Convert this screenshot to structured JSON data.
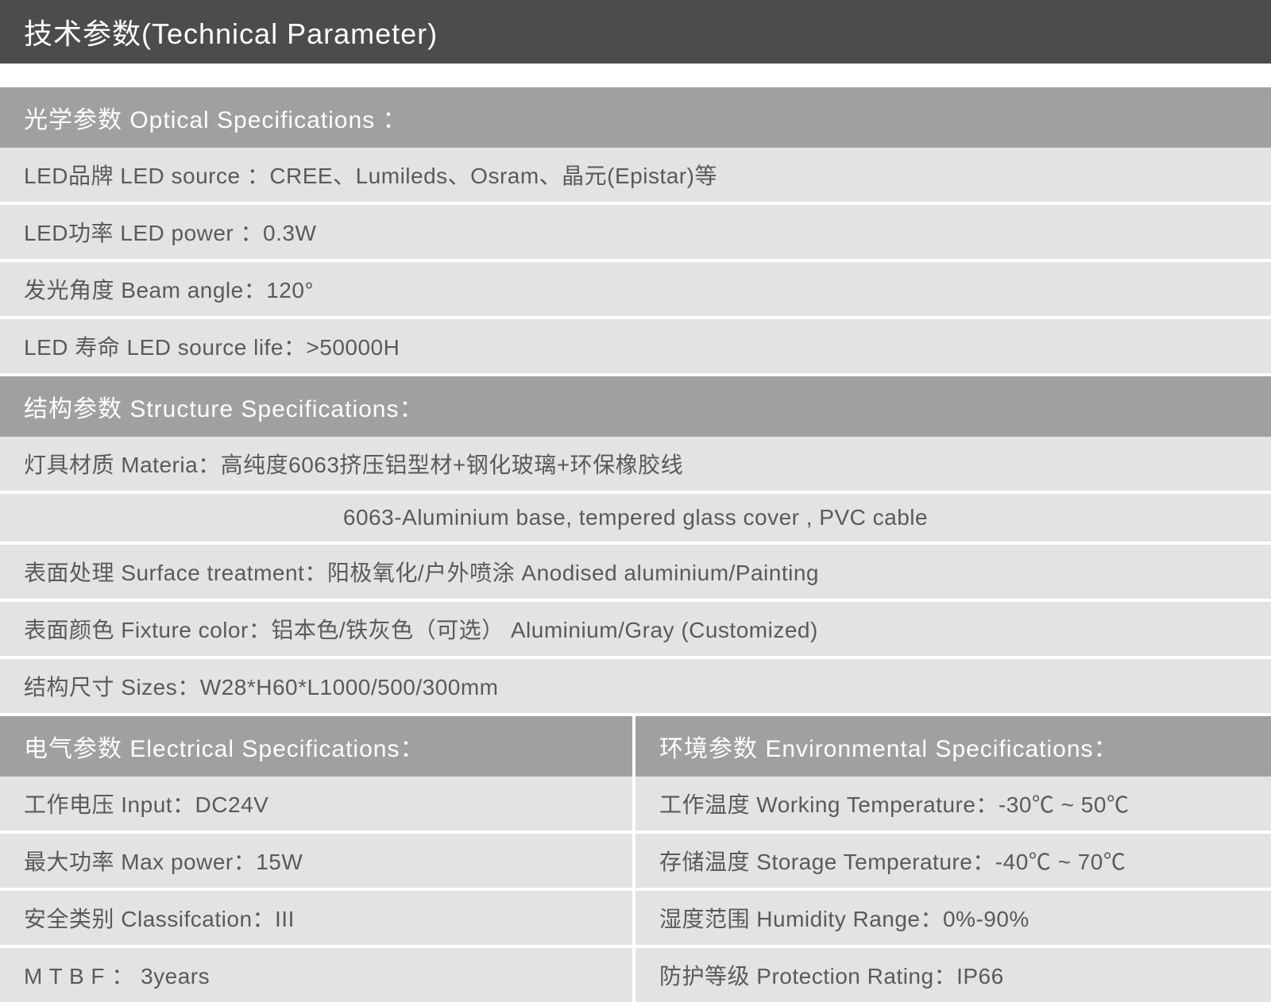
{
  "colors": {
    "title_bg": "#4b4c4d",
    "header_bg": "#9fa0a1",
    "row_bg": "#e3e3e3",
    "divider": "#ffffff",
    "title_text": "#ffffff",
    "row_text": "#595a5b"
  },
  "typography": {
    "title_fontsize": 36,
    "header_fontsize": 30,
    "row_fontsize": 28,
    "font_family": "Microsoft YaHei, Arial, sans-serif"
  },
  "title": "技术参数(Technical Parameter)",
  "sections": {
    "optical": {
      "header": "光学参数 Optical Specifications ：",
      "rows": [
        "LED品牌 LED source ：CREE、Lumileds、Osram、晶元(Epistar)等",
        "LED功率 LED power ：0.3W",
        "发光角度 Beam angle：120°",
        "LED 寿命 LED source life：>50000H"
      ]
    },
    "structure": {
      "header": "结构参数 Structure Specifications：",
      "rows": [
        "灯具材质 Materia：高纯度6063挤压铝型材+钢化玻璃+环保橡胶线",
        "6063-Aluminium base, tempered glass cover , PVC cable",
        "表面处理 Surface treatment：阳极氧化/户外喷涂 Anodised aluminium/Painting",
        "表面颜色 Fixture color：铝本色/铁灰色（可选） Aluminium/Gray (Customized)",
        "结构尺寸 Sizes：W28*H60*L1000/500/300mm"
      ]
    },
    "electrical": {
      "header": "电气参数 Electrical Specifications：",
      "rows": [
        "工作电压 Input：DC24V",
        "最大功率 Max power：15W",
        "安全类别 Classifcation：III",
        "M T B F ： 3years"
      ]
    },
    "environmental": {
      "header": "环境参数 Environmental Specifications：",
      "rows": [
        "工作温度 Working Temperature：-30℃ ~ 50℃",
        "存储温度 Storage Temperature：-40℃ ~ 70℃",
        "湿度范围 Humidity Range：0%-90%",
        "防护等级 Protection Rating：IP66"
      ]
    }
  }
}
